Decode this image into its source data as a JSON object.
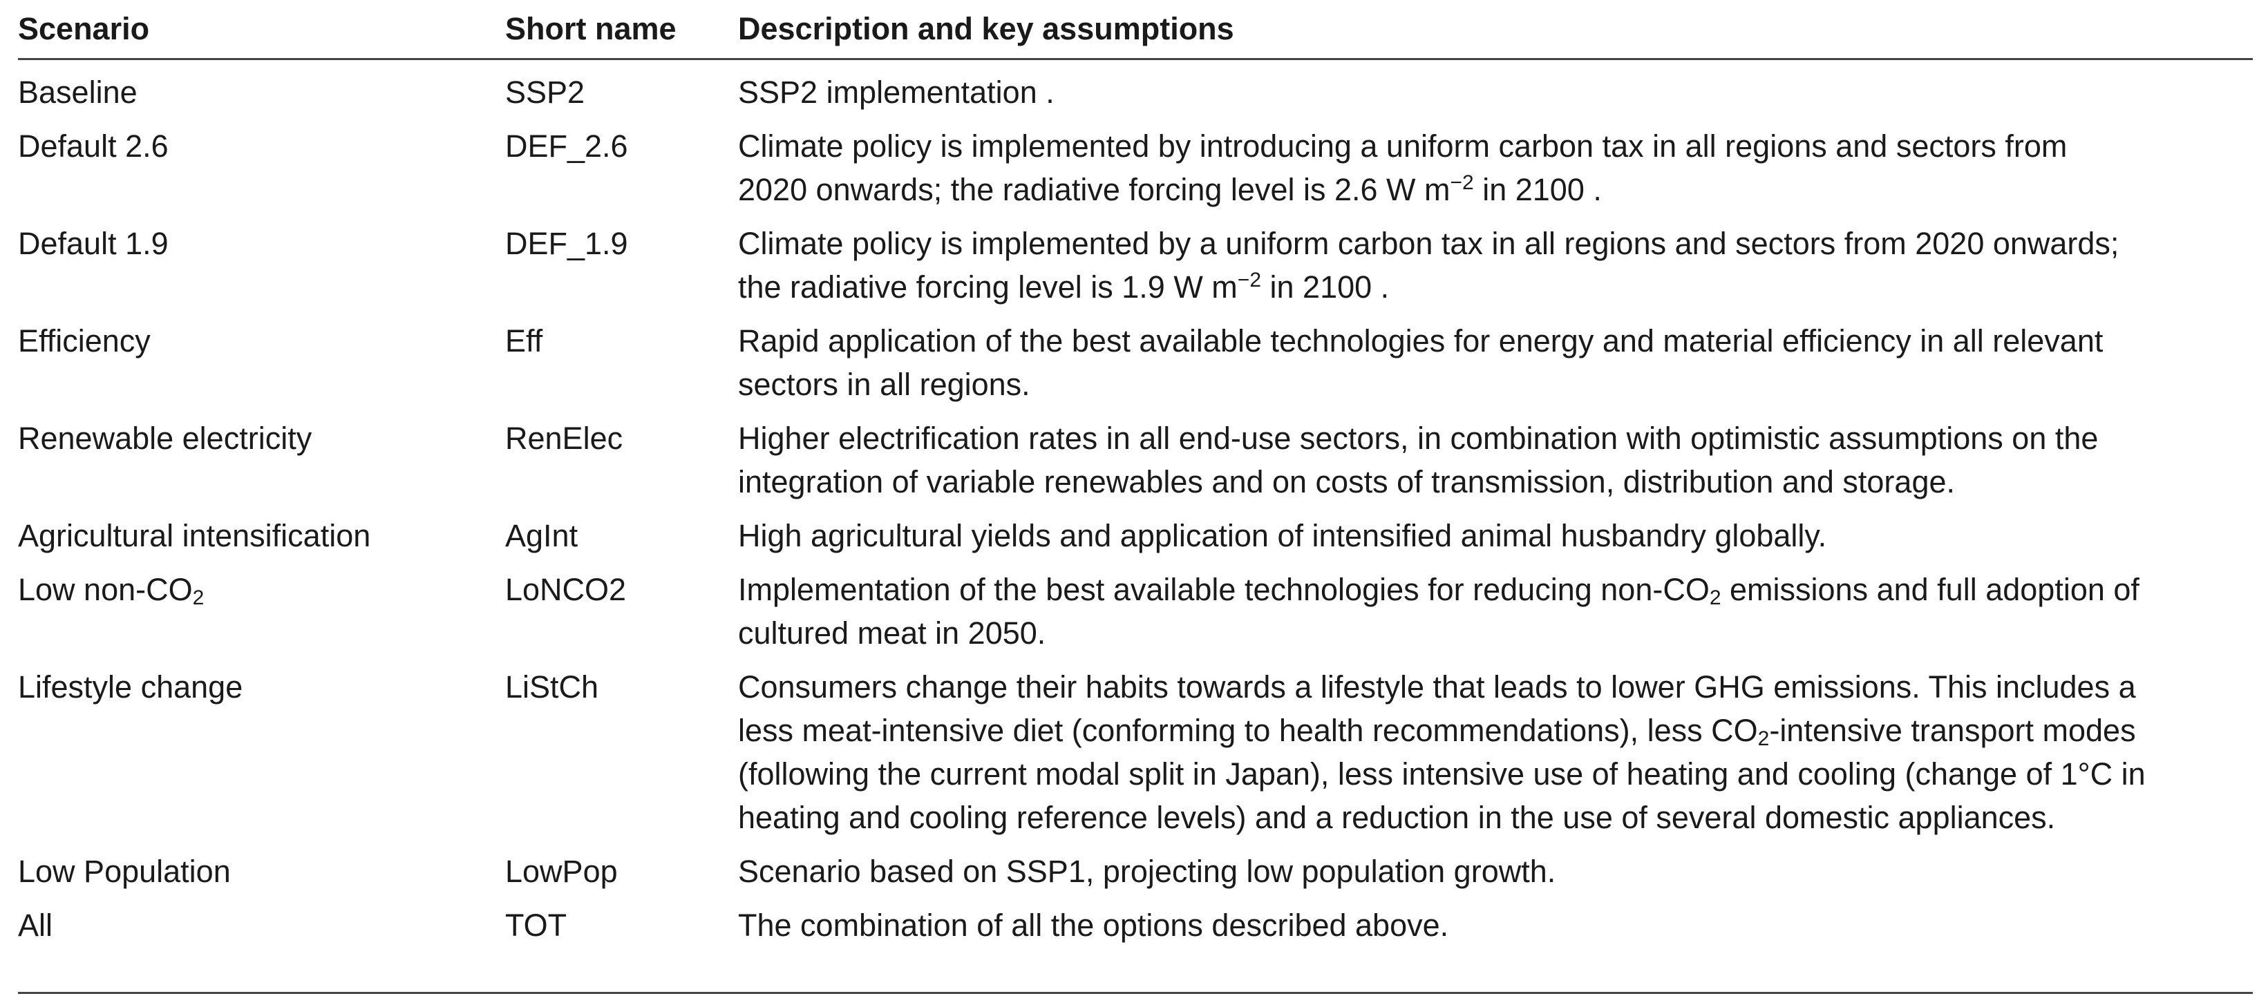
{
  "table": {
    "headers": {
      "scenario": "Scenario",
      "short_name": "Short name",
      "description": "Description and key assumptions"
    },
    "rows": [
      {
        "scenario": "Baseline",
        "short": "SSP2",
        "desc_lines": [
          "SSP2 implementation  ."
        ]
      },
      {
        "scenario": "Default 2.6",
        "short": "DEF_2.6",
        "desc_lines": [
          "Climate policy is implemented by introducing a uniform carbon tax in all regions and sectors from",
          "2020 onwards; the radiative forcing level is 2.6 W m",
          "−2",
          " in 2100   ."
        ]
      },
      {
        "scenario": "Default 1.9",
        "short": "DEF_1.9",
        "desc_lines": [
          "Climate policy is implemented by a uniform carbon tax in all regions and sectors from 2020 onwards;",
          "the radiative forcing level is 1.9 W m",
          "−2",
          " in 2100   ."
        ]
      },
      {
        "scenario": "Efficiency",
        "short": "Eff",
        "desc_lines": [
          "Rapid application of the best available technologies for energy and material efficiency in all relevant",
          "sectors in all regions."
        ]
      },
      {
        "scenario": "Renewable electricity",
        "short": "RenElec",
        "desc_lines": [
          "Higher electrification rates in all end-use sectors, in combination with optimistic assumptions on the",
          "integration of variable renewables and on costs of transmission, distribution and storage."
        ]
      },
      {
        "scenario": "Agricultural intensification",
        "short": "AgInt",
        "desc_lines": [
          "High agricultural yields and application of intensified animal husbandry globally."
        ]
      },
      {
        "scenario": "Low non-CO",
        "scenario_sub": "2",
        "short": "LoNCO2",
        "desc_lines": [
          "Implementation of the best available technologies for reducing non-CO",
          "2",
          " emissions and full adoption of",
          "cultured meat in 2050."
        ]
      },
      {
        "scenario": "Lifestyle change",
        "short": "LiStCh",
        "desc_lines": [
          "Consumers change their habits towards a lifestyle that leads to lower GHG emissions. This includes a",
          "less meat-intensive diet (conforming to health recommendations), less CO",
          "2",
          "-intensive transport modes",
          "(following the current modal split in Japan), less intensive use of heating and cooling (change of 1°C in",
          "heating and cooling reference levels) and a reduction in the use of several domestic appliances."
        ]
      },
      {
        "scenario": "Low Population",
        "short": "LowPop",
        "desc_lines": [
          "Scenario based on SSP1, projecting low population growth."
        ]
      },
      {
        "scenario": "All",
        "short": "TOT",
        "desc_lines": [
          "The combination of all the options described above."
        ]
      }
    ]
  }
}
